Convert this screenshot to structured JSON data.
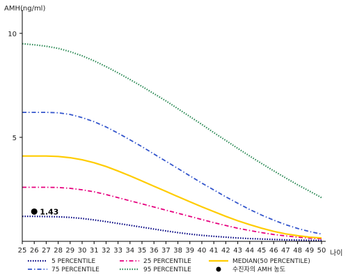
{
  "chart_data": {
    "type": "line",
    "ylabel": "AMH(ng/ml)",
    "xlabel": "나이",
    "xlim": [
      25,
      50
    ],
    "ylim": [
      0,
      11
    ],
    "yticks": [
      5,
      10
    ],
    "x": [
      25,
      26,
      27,
      28,
      29,
      30,
      31,
      32,
      33,
      34,
      35,
      36,
      37,
      38,
      39,
      40,
      41,
      42,
      43,
      44,
      45,
      46,
      47,
      48,
      49,
      50
    ],
    "series": [
      {
        "name": "5 PERCENTILE",
        "color": "#000080",
        "dash": "dotted",
        "values": [
          1.2,
          1.2,
          1.19,
          1.18,
          1.15,
          1.1,
          1.03,
          0.95,
          0.86,
          0.77,
          0.68,
          0.59,
          0.5,
          0.42,
          0.35,
          0.29,
          0.24,
          0.2,
          0.16,
          0.13,
          0.11,
          0.09,
          0.07,
          0.06,
          0.05,
          0.04
        ]
      },
      {
        "name": "25 PERCENTILE",
        "color": "#e6007e",
        "dash": "dash-dot",
        "values": [
          2.6,
          2.6,
          2.6,
          2.59,
          2.55,
          2.48,
          2.38,
          2.25,
          2.1,
          1.95,
          1.8,
          1.65,
          1.5,
          1.35,
          1.2,
          1.05,
          0.9,
          0.76,
          0.63,
          0.52,
          0.42,
          0.33,
          0.26,
          0.2,
          0.15,
          0.12
        ]
      },
      {
        "name": "MEDIAN(50 PERCENTILE)",
        "color": "#ffcc00",
        "dash": "solid",
        "values": [
          4.1,
          4.1,
          4.1,
          4.08,
          4.02,
          3.92,
          3.78,
          3.6,
          3.38,
          3.15,
          2.9,
          2.65,
          2.4,
          2.15,
          1.9,
          1.66,
          1.43,
          1.2,
          0.99,
          0.8,
          0.63,
          0.48,
          0.36,
          0.27,
          0.2,
          0.16
        ]
      },
      {
        "name": "75 PERCENTILE",
        "color": "#3355cc",
        "dash": "dash-dot",
        "values": [
          6.2,
          6.2,
          6.2,
          6.18,
          6.1,
          5.95,
          5.75,
          5.5,
          5.2,
          4.88,
          4.55,
          4.2,
          3.85,
          3.5,
          3.15,
          2.8,
          2.47,
          2.14,
          1.83,
          1.53,
          1.26,
          1.02,
          0.8,
          0.62,
          0.47,
          0.35
        ]
      },
      {
        "name": "95 PERCENTILE",
        "color": "#2e8b57",
        "dash": "dotted",
        "values": [
          9.5,
          9.45,
          9.38,
          9.28,
          9.12,
          8.92,
          8.68,
          8.4,
          8.1,
          7.78,
          7.45,
          7.1,
          6.75,
          6.38,
          6.0,
          5.62,
          5.23,
          4.85,
          4.47,
          4.1,
          3.74,
          3.39,
          3.05,
          2.72,
          2.41,
          2.1
        ]
      }
    ],
    "legend_rows": [
      [
        "5 PERCENTILE",
        "25 PERCENTILE",
        "MEDIAN(50 PERCENTILE)"
      ],
      [
        "75 PERCENTILE",
        "95 PERCENTILE",
        "수진자의 AMH 농도"
      ]
    ],
    "legend_position": "bottom",
    "marker": {
      "legend_label": "수진자의 AMH 농도",
      "x": 26,
      "y": 1.43,
      "label": "1.43",
      "color": "#000000"
    }
  }
}
